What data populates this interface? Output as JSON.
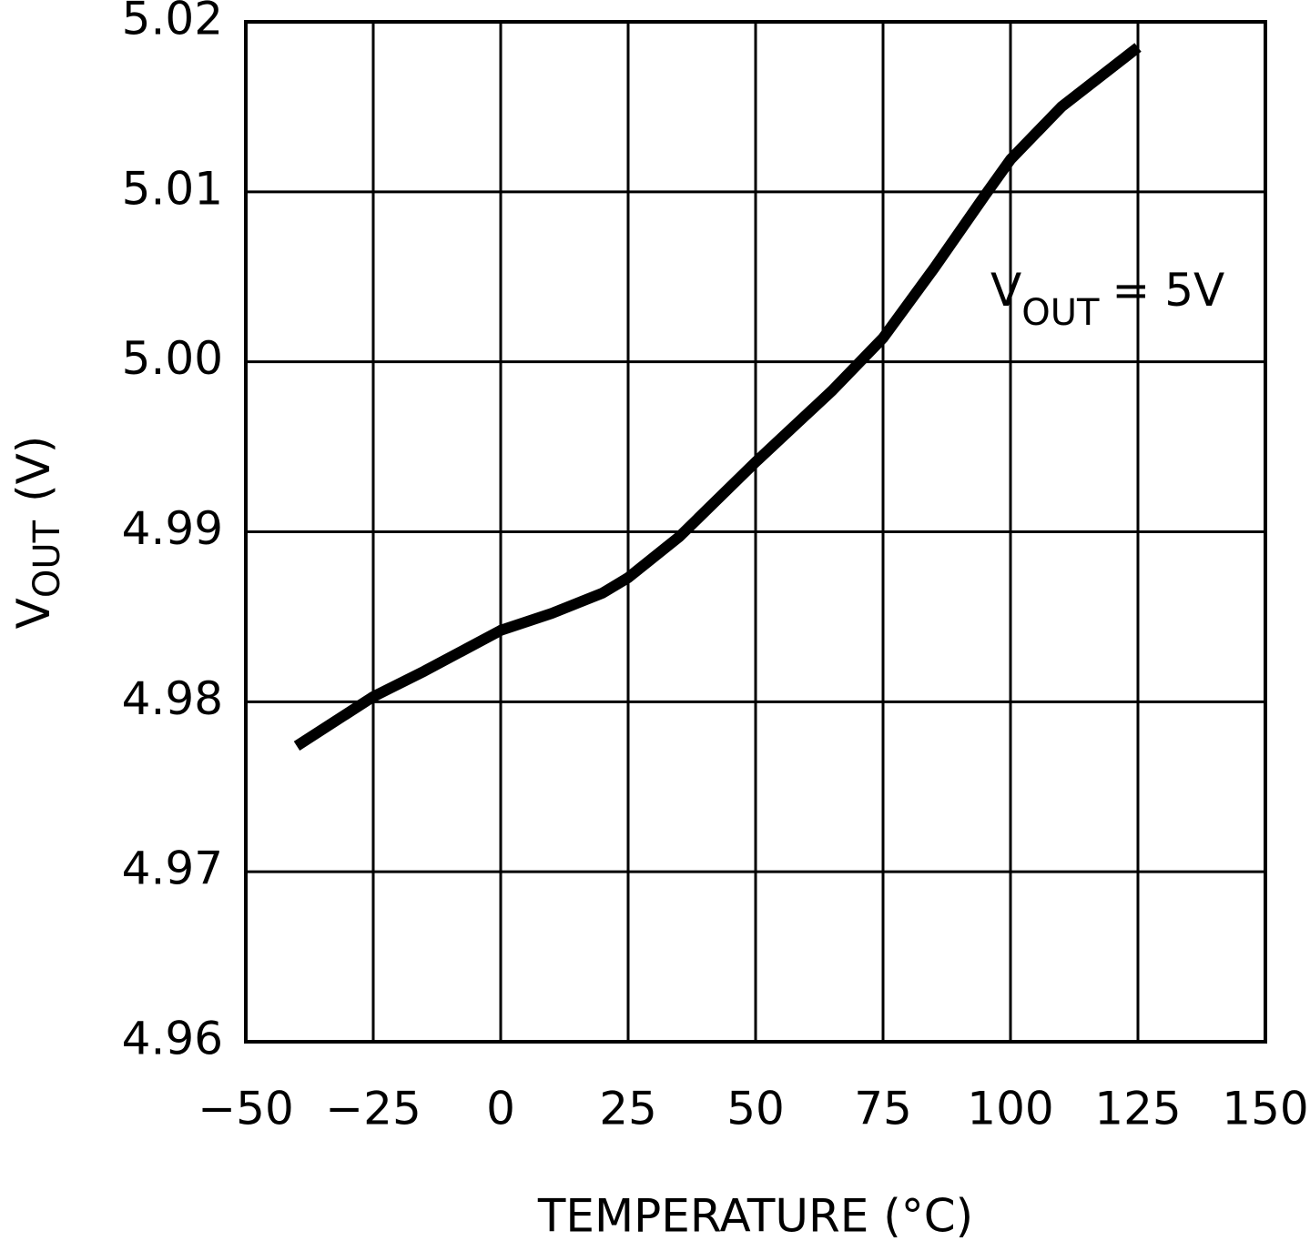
{
  "chart_data": {
    "type": "line",
    "x_label": "TEMPERATURE (°C)",
    "y_label": {
      "symbol": "V",
      "subscript": "OUT",
      "unit": "(V)"
    },
    "annotation": {
      "symbol": "V",
      "subscript": "OUT",
      "rest": "= 5V"
    },
    "x": [
      -40,
      -25,
      -15,
      0,
      10,
      20,
      25,
      35,
      50,
      65,
      75,
      85,
      95,
      100,
      110,
      125
    ],
    "values": [
      4.9774,
      4.9803,
      4.9818,
      4.9842,
      4.9852,
      4.9864,
      4.9873,
      4.9897,
      4.9941,
      4.9983,
      5.0014,
      5.0055,
      5.0098,
      5.0119,
      5.015,
      5.0185
    ],
    "color": "#000000",
    "xlim": [
      -50,
      150
    ],
    "xticks": [
      {
        "value": -50,
        "label": "−50"
      },
      {
        "value": -25,
        "label": "−25"
      },
      0,
      25,
      50,
      75,
      100,
      125,
      150
    ],
    "ylim": [
      4.96,
      5.02
    ],
    "yticks": [
      4.96,
      4.97,
      4.98,
      4.99,
      {
        "value": 5,
        "label": "5.00"
      },
      5.01,
      5.02
    ],
    "grid": true
  }
}
